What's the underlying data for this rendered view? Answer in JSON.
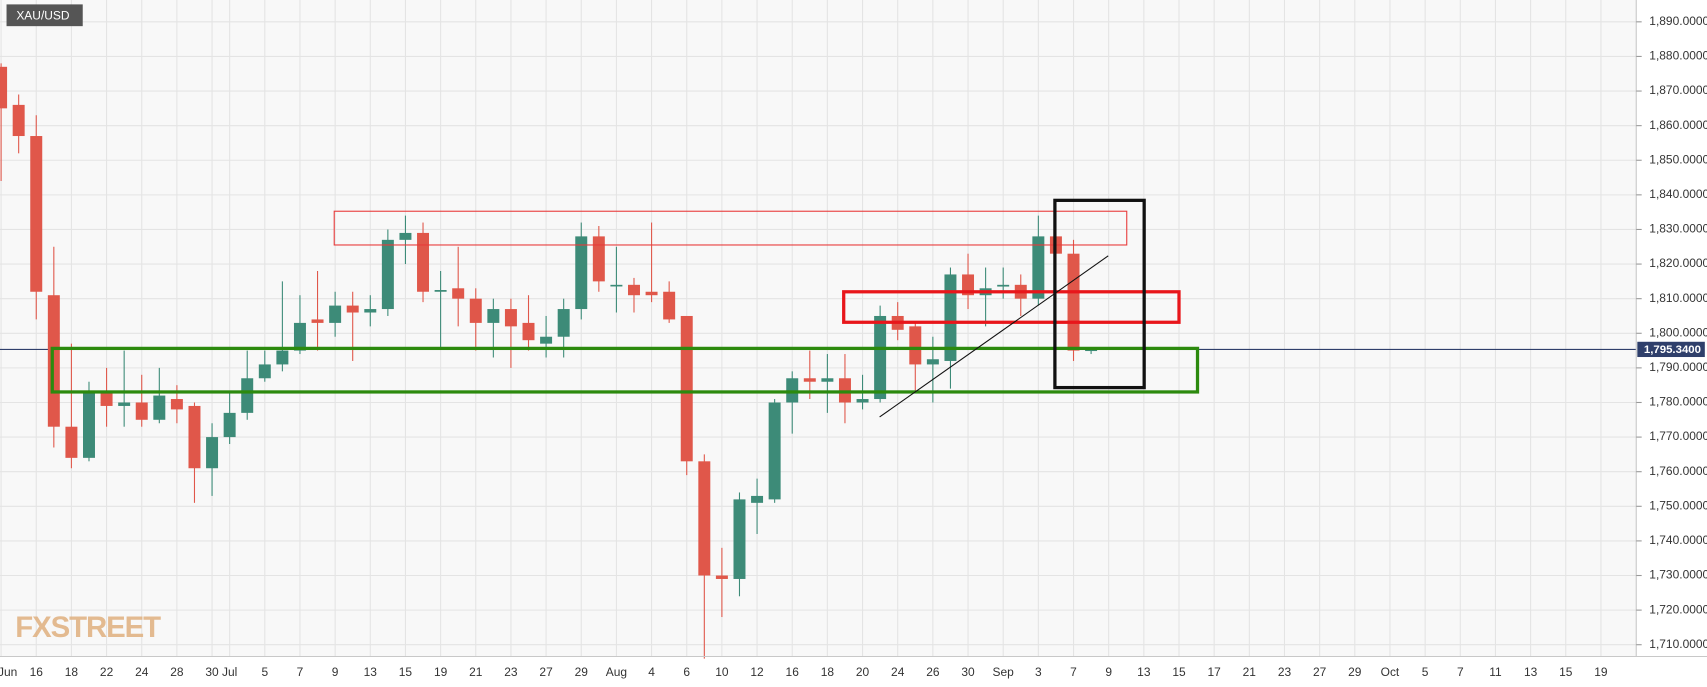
{
  "chart_data": {
    "type": "candlestick",
    "title": "XAU/USD",
    "watermark": "FXSTREET",
    "up_color": "#3d8b78",
    "down_color": "#e0574a",
    "grid": true,
    "categories": [
      "Jun",
      null,
      "16",
      null,
      "18",
      null,
      "22",
      null,
      "24",
      null,
      "28",
      null,
      "30",
      "Jul",
      null,
      "5",
      null,
      "7",
      null,
      "9",
      null,
      "13",
      null,
      "15",
      null,
      "19",
      null,
      "21",
      null,
      "23",
      null,
      "27",
      null,
      "29",
      null,
      "Aug",
      null,
      "4",
      null,
      "6",
      null,
      "10",
      null,
      "12",
      null,
      "16",
      null,
      "18",
      null,
      "20",
      null,
      "24",
      null,
      "26",
      null,
      "30",
      null,
      "Sep",
      null,
      "3",
      null,
      "7",
      null,
      "9",
      null,
      "13",
      null,
      "15",
      null,
      "17",
      null,
      "21",
      null,
      "23",
      null,
      "27",
      null,
      "29",
      null,
      "Oct",
      null,
      "5",
      null,
      "7",
      null,
      "11",
      null,
      "13",
      null,
      "15",
      null,
      "19",
      null,
      null
    ],
    "open": [
      1877,
      1866,
      1857,
      1811,
      1773,
      1764,
      1783,
      1779,
      1780,
      1775,
      1781,
      1779,
      1761,
      1770,
      1777,
      1787,
      1791,
      1795,
      1804,
      1803,
      1808,
      1806,
      1807,
      1827,
      1829,
      1812,
      1813,
      1810,
      1803,
      1807,
      1803,
      1797,
      1799,
      1807,
      1828,
      1814,
      1814,
      1812,
      1812,
      1805,
      1763,
      1730,
      1729,
      1751,
      1752,
      1780,
      1787,
      1786,
      1787,
      1780,
      1781,
      1805,
      1802,
      1791,
      1792,
      1817,
      1811,
      1813.5,
      1814,
      1810,
      1828,
      1823,
      1795,
      null,
      null,
      null,
      null,
      null,
      null,
      null,
      null,
      null,
      null,
      null,
      null,
      null,
      null,
      null,
      null,
      null,
      null,
      null,
      null,
      null,
      null,
      null,
      null,
      null,
      null,
      null,
      null,
      null,
      null,
      null
    ],
    "high": [
      1878,
      1869,
      1863,
      1825,
      1797,
      1786,
      1790,
      1795,
      1788,
      1790,
      1785,
      1780,
      1774,
      1783,
      1795,
      1795,
      1815,
      1811,
      1818,
      1812,
      1812,
      1811,
      1830,
      1834,
      1832,
      1818,
      1825,
      1813,
      1810,
      1810,
      1811,
      1805,
      1810,
      1832,
      1831,
      1825,
      1816,
      1832,
      1815,
      1805,
      1765,
      1738,
      1754,
      1758,
      1781,
      1789,
      1795,
      1794,
      1794,
      1788,
      1808,
      1809,
      1803,
      1799,
      1819,
      1823,
      1819,
      1819,
      1817,
      1834,
      1829,
      1827,
      1796,
      null,
      null,
      null,
      null,
      null,
      null,
      null,
      null,
      null,
      null,
      null,
      null,
      null,
      null,
      null,
      null,
      null,
      null,
      null,
      null,
      null,
      null,
      null,
      null,
      null,
      null,
      null,
      null,
      null,
      null,
      null
    ],
    "low": [
      1844,
      1852,
      1804,
      1767,
      1761,
      1763,
      1773,
      1773,
      1773,
      1774,
      1774,
      1751,
      1753,
      1768,
      1775,
      1786,
      1789,
      1794,
      1795,
      1799,
      1792,
      1802,
      1805,
      1820,
      1809,
      1796,
      1802,
      1795,
      1793,
      1790,
      1795,
      1793,
      1793,
      1804,
      1812,
      1806,
      1806,
      1809,
      1803,
      1759,
      1706,
      1718,
      1724,
      1742,
      1751,
      1771,
      1781,
      1777,
      1774,
      1778,
      1780,
      1798,
      1783,
      1780,
      1784,
      1807,
      1802,
      1810,
      1805,
      1808,
      1821,
      1792,
      1794,
      null,
      null,
      null,
      null,
      null,
      null,
      null,
      null,
      null,
      null,
      null,
      null,
      null,
      null,
      null,
      null,
      null,
      null,
      null,
      null,
      null,
      null,
      null,
      null,
      null,
      null,
      null,
      null,
      null,
      null,
      null
    ],
    "close": [
      1865,
      1857,
      1812,
      1773,
      1764,
      1783,
      1779,
      1780,
      1775,
      1782,
      1778,
      1761,
      1770,
      1777,
      1787,
      1791,
      1795,
      1803,
      1803,
      1808,
      1806,
      1807,
      1827,
      1829,
      1812,
      1812.5,
      1810,
      1803,
      1807,
      1802,
      1798,
      1799,
      1807,
      1828,
      1815,
      1814,
      1811,
      1811,
      1804,
      1763,
      1730,
      1729,
      1752,
      1753,
      1780,
      1787,
      1786,
      1787,
      1780,
      1781,
      1805,
      1801,
      1791,
      1792.5,
      1817,
      1811,
      1813,
      1814,
      1810,
      1828,
      1823,
      1795,
      1795.34,
      null,
      null,
      null,
      null,
      null,
      null,
      null,
      null,
      null,
      null,
      null,
      null,
      null,
      null,
      null,
      null,
      null,
      null,
      null,
      null,
      null,
      null,
      null,
      null,
      null,
      null,
      null,
      null,
      null,
      null,
      null
    ],
    "last_price": 1795.34,
    "last_price_label": "1,795.3400",
    "last_price_color": "#2f3f6b",
    "ylim": [
      1706.6,
      1896.3
    ],
    "yticks": [
      {
        "value": 1710,
        "label": "1,710.0000"
      },
      {
        "value": 1720,
        "label": "1,720.0000"
      },
      {
        "value": 1730,
        "label": "1,730.0000"
      },
      {
        "value": 1740,
        "label": "1,740.0000"
      },
      {
        "value": 1750,
        "label": "1,750.0000"
      },
      {
        "value": 1760,
        "label": "1,760.0000"
      },
      {
        "value": 1770,
        "label": "1,770.0000"
      },
      {
        "value": 1780,
        "label": "1,780.0000"
      },
      {
        "value": 1790,
        "label": "1,790.0000"
      },
      {
        "value": 1800,
        "label": "1,800.0000"
      },
      {
        "value": 1810,
        "label": "1,810.0000"
      },
      {
        "value": 1820,
        "label": "1,820.0000"
      },
      {
        "value": 1830,
        "label": "1,830.0000"
      },
      {
        "value": 1840,
        "label": "1,840.0000"
      },
      {
        "value": 1850,
        "label": "1,850.0000"
      },
      {
        "value": 1860,
        "label": "1,860.0000"
      },
      {
        "value": 1870,
        "label": "1,870.0000"
      },
      {
        "value": 1880,
        "label": "1,880.0000"
      },
      {
        "value": 1890,
        "label": "1,890.0000"
      }
    ]
  }
}
